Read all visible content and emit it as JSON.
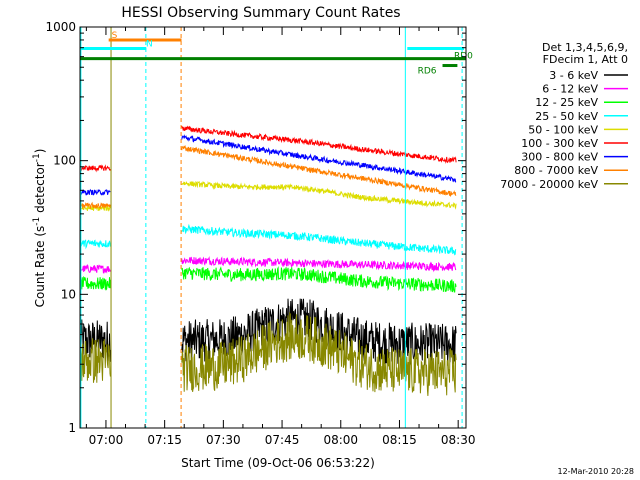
{
  "chart_data": {
    "type": "line",
    "title": "HESSI Observing Summary Count Rates",
    "xlabel": "Start Time (09-Oct-06 06:53:22)",
    "ylabel_main": "Count Rate (s",
    "ylabel_sup1": "-1",
    "ylabel_mid": " detector",
    "ylabel_sup2": "-1",
    "ylabel_end": ")",
    "y_scale": "log",
    "ylim": [
      1,
      1000
    ],
    "xlim_min": [
      53.37,
      152
    ],
    "x_ticks": [
      {
        "min": 60,
        "label": "07:00"
      },
      {
        "min": 75,
        "label": "07:15"
      },
      {
        "min": 90,
        "label": "07:30"
      },
      {
        "min": 105,
        "label": "07:45"
      },
      {
        "min": 120,
        "label": "08:00"
      },
      {
        "min": 135,
        "label": "08:15"
      },
      {
        "min": 150,
        "label": "08:30"
      }
    ],
    "y_ticks": [
      {
        "val": 1,
        "label": "1"
      },
      {
        "val": 10,
        "label": "10"
      },
      {
        "val": 100,
        "label": "100"
      },
      {
        "val": 1000,
        "label": "1000"
      }
    ],
    "legend_header": [
      "Det 1,3,4,5,6,9,",
      "FDecim 1, Att 0"
    ],
    "series": [
      {
        "name": "3 - 6 keV",
        "color": "#000000",
        "pre": 4.5,
        "start": 4.5,
        "mid": 6.5,
        "end": 4.2,
        "noise": 0.16
      },
      {
        "name": "6 - 12 keV",
        "color": "#ff00ff",
        "pre": 15.5,
        "start": 18,
        "mid": 17,
        "end": 16,
        "noise": 0.03
      },
      {
        "name": "12 - 25 keV",
        "color": "#00ff00",
        "pre": 12,
        "start": 14.5,
        "mid": 14,
        "end": 11.5,
        "noise": 0.05
      },
      {
        "name": "25 - 50 keV",
        "color": "#00ffff",
        "pre": 24,
        "start": 31,
        "mid": 27,
        "end": 21,
        "noise": 0.03
      },
      {
        "name": "50 - 100 keV",
        "color": "#dddd00",
        "pre": 44,
        "start": 68,
        "mid": 62,
        "end": 46,
        "noise": 0.02
      },
      {
        "name": "100 - 300 keV",
        "color": "#ff0000",
        "pre": 88,
        "start": 175,
        "mid": 140,
        "end": 100,
        "noise": 0.02
      },
      {
        "name": "300 - 800 keV",
        "color": "#0000ff",
        "pre": 58,
        "start": 150,
        "mid": 110,
        "end": 72,
        "noise": 0.02
      },
      {
        "name": "800 - 7000 keV",
        "color": "#ff8000",
        "pre": 46,
        "start": 125,
        "mid": 90,
        "end": 56,
        "noise": 0.02
      },
      {
        "name": "7000 - 20000 keV",
        "color": "#888800",
        "pre": 3.2,
        "start": 2.8,
        "mid": 4.8,
        "end": 2.6,
        "noise": 0.18
      }
    ],
    "data_gaps": [
      [
        61.2,
        79.3
      ],
      [
        149.5,
        152
      ]
    ],
    "saa_flags": [
      {
        "label": "S",
        "color": "#ff8000",
        "x": [
          60.7,
          79.3
        ],
        "y": 800
      },
      {
        "label": "N",
        "color": "#00ffff",
        "x": [
          53.37,
          70.3
        ],
        "y": 690
      },
      {
        "label": "",
        "color": "#00ffff",
        "x": [
          137,
          151.5
        ],
        "y": 690
      }
    ],
    "flag_lines": [
      {
        "label": "",
        "color": "#008000",
        "x": [
          53.37,
          152
        ],
        "y": 580
      },
      {
        "label": "RD6",
        "color": "#008000",
        "x": [
          146,
          149.8
        ],
        "y": 515
      },
      {
        "label": "RD0",
        "color": "#008000",
        "x": [
          150.2,
          152
        ],
        "y": 580
      }
    ],
    "vertical_lines": [
      {
        "x": 53.6,
        "color": "#00ffff",
        "style": "solid"
      },
      {
        "x": 61.3,
        "color": "#888800",
        "style": "solid"
      },
      {
        "x": 70.2,
        "color": "#00ffff",
        "style": "dashed"
      },
      {
        "x": 79.2,
        "color": "#ff8000",
        "style": "dashed"
      },
      {
        "x": 136.5,
        "color": "#00ffff",
        "style": "solid"
      },
      {
        "x": 151.0,
        "color": "#00ffff",
        "style": "dashed"
      }
    ],
    "timestamp": "12-Mar-2010 20:28"
  }
}
